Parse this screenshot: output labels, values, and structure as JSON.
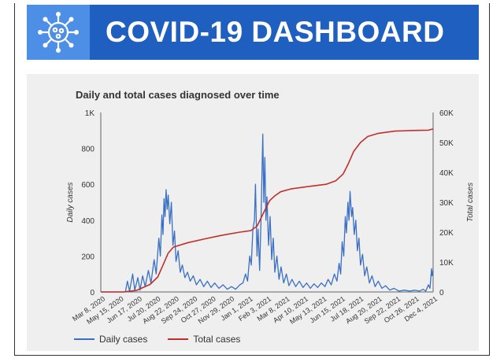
{
  "header": {
    "title": "COVID-19 DASHBOARD",
    "logo_icon": "virus-icon",
    "bg_color": "#1f5fc0",
    "logo_bg_color": "#4d8ee6"
  },
  "chart_data": {
    "type": "line",
    "title": "Daily and total cases diagnosed over time",
    "xlabel": "",
    "ylabel": "Daily cases",
    "y2label": "Total cases",
    "ylim": [
      0,
      1000
    ],
    "y2lim": [
      0,
      60000
    ],
    "yticks": [
      "0",
      "200",
      "400",
      "600",
      "800",
      "1K"
    ],
    "y2ticks": [
      "0",
      "10K",
      "20K",
      "30K",
      "40K",
      "50K",
      "60K"
    ],
    "xticks": [
      "Mar 8, 2020",
      "May 15, 2020",
      "Jun 17, 2020",
      "Jul 20, 2020",
      "Aug 22, 2020",
      "Sep 24, 2020",
      "Oct 27, 2020",
      "Nov 29, 2020",
      "Jan 1, 2021",
      "Feb 3, 2021",
      "Mar 8, 2021",
      "Apr 10, 2021",
      "May 13, 2021",
      "Jun 15, 2021",
      "Jul 18, 2021",
      "Aug 20, 2021",
      "Sep 22, 2021",
      "Oct 26, 2021",
      "Dec 4, 2021"
    ],
    "x_start": "Mar 8, 2020",
    "x_end": "Dec 4, 2021",
    "grid": false,
    "legend_position": "bottom",
    "series": [
      {
        "name": "Daily cases",
        "axis": "left",
        "color": "#3a6fc4",
        "points": [
          [
            "2020-03-08",
            0
          ],
          [
            "2020-04-01",
            0
          ],
          [
            "2020-04-24",
            0
          ],
          [
            "2020-04-28",
            60
          ],
          [
            "2020-05-02",
            5
          ],
          [
            "2020-05-08",
            100
          ],
          [
            "2020-05-12",
            10
          ],
          [
            "2020-05-18",
            80
          ],
          [
            "2020-05-22",
            10
          ],
          [
            "2020-05-27",
            90
          ],
          [
            "2020-06-01",
            30
          ],
          [
            "2020-06-07",
            120
          ],
          [
            "2020-06-12",
            50
          ],
          [
            "2020-06-18",
            180
          ],
          [
            "2020-06-22",
            100
          ],
          [
            "2020-06-27",
            300
          ],
          [
            "2020-06-30",
            200
          ],
          [
            "2020-07-03",
            430
          ],
          [
            "2020-07-05",
            320
          ],
          [
            "2020-07-07",
            520
          ],
          [
            "2020-07-09",
            420
          ],
          [
            "2020-07-11",
            570
          ],
          [
            "2020-07-13",
            460
          ],
          [
            "2020-07-15",
            540
          ],
          [
            "2020-07-18",
            380
          ],
          [
            "2020-07-21",
            500
          ],
          [
            "2020-07-24",
            260
          ],
          [
            "2020-07-27",
            340
          ],
          [
            "2020-07-30",
            170
          ],
          [
            "2020-08-03",
            230
          ],
          [
            "2020-08-07",
            110
          ],
          [
            "2020-08-11",
            150
          ],
          [
            "2020-08-16",
            80
          ],
          [
            "2020-08-21",
            110
          ],
          [
            "2020-08-26",
            60
          ],
          [
            "2020-09-01",
            90
          ],
          [
            "2020-09-07",
            40
          ],
          [
            "2020-09-14",
            70
          ],
          [
            "2020-09-21",
            30
          ],
          [
            "2020-09-28",
            60
          ],
          [
            "2020-10-05",
            25
          ],
          [
            "2020-10-12",
            50
          ],
          [
            "2020-10-20",
            20
          ],
          [
            "2020-10-28",
            40
          ],
          [
            "2020-11-05",
            15
          ],
          [
            "2020-11-13",
            30
          ],
          [
            "2020-11-21",
            15
          ],
          [
            "2020-11-29",
            40
          ],
          [
            "2020-12-05",
            50
          ],
          [
            "2020-12-10",
            100
          ],
          [
            "2020-12-14",
            60
          ],
          [
            "2020-12-18",
            200
          ],
          [
            "2020-12-21",
            150
          ],
          [
            "2020-12-24",
            350
          ],
          [
            "2020-12-27",
            400
          ],
          [
            "2020-12-29",
            600
          ],
          [
            "2021-01-01",
            200
          ],
          [
            "2021-01-03",
            350
          ],
          [
            "2021-01-06",
            120
          ],
          [
            "2021-01-09",
            450
          ],
          [
            "2021-01-12",
            880
          ],
          [
            "2021-01-14",
            500
          ],
          [
            "2021-01-16",
            750
          ],
          [
            "2021-01-18",
            400
          ],
          [
            "2021-01-20",
            530
          ],
          [
            "2021-01-23",
            260
          ],
          [
            "2021-01-26",
            420
          ],
          [
            "2021-01-29",
            180
          ],
          [
            "2021-02-01",
            300
          ],
          [
            "2021-02-04",
            110
          ],
          [
            "2021-02-08",
            200
          ],
          [
            "2021-02-12",
            70
          ],
          [
            "2021-02-16",
            140
          ],
          [
            "2021-02-21",
            50
          ],
          [
            "2021-02-26",
            100
          ],
          [
            "2021-03-03",
            35
          ],
          [
            "2021-03-09",
            70
          ],
          [
            "2021-03-16",
            30
          ],
          [
            "2021-03-23",
            60
          ],
          [
            "2021-03-30",
            25
          ],
          [
            "2021-04-06",
            50
          ],
          [
            "2021-04-13",
            20
          ],
          [
            "2021-04-20",
            45
          ],
          [
            "2021-04-27",
            25
          ],
          [
            "2021-05-04",
            50
          ],
          [
            "2021-05-11",
            30
          ],
          [
            "2021-05-17",
            70
          ],
          [
            "2021-05-23",
            40
          ],
          [
            "2021-05-29",
            100
          ],
          [
            "2021-06-03",
            60
          ],
          [
            "2021-06-07",
            160
          ],
          [
            "2021-06-10",
            100
          ],
          [
            "2021-06-13",
            280
          ],
          [
            "2021-06-16",
            200
          ],
          [
            "2021-06-19",
            420
          ],
          [
            "2021-06-21",
            330
          ],
          [
            "2021-06-24",
            500
          ],
          [
            "2021-06-26",
            400
          ],
          [
            "2021-06-28",
            560
          ],
          [
            "2021-07-01",
            420
          ],
          [
            "2021-07-03",
            470
          ],
          [
            "2021-07-06",
            320
          ],
          [
            "2021-07-09",
            400
          ],
          [
            "2021-07-12",
            230
          ],
          [
            "2021-07-15",
            300
          ],
          [
            "2021-07-18",
            150
          ],
          [
            "2021-07-22",
            210
          ],
          [
            "2021-07-26",
            90
          ],
          [
            "2021-07-30",
            140
          ],
          [
            "2021-08-04",
            50
          ],
          [
            "2021-08-09",
            90
          ],
          [
            "2021-08-15",
            30
          ],
          [
            "2021-08-21",
            60
          ],
          [
            "2021-08-28",
            20
          ],
          [
            "2021-09-04",
            35
          ],
          [
            "2021-09-12",
            10
          ],
          [
            "2021-09-20",
            20
          ],
          [
            "2021-09-30",
            5
          ],
          [
            "2021-10-10",
            10
          ],
          [
            "2021-10-20",
            5
          ],
          [
            "2021-10-30",
            10
          ],
          [
            "2021-11-08",
            5
          ],
          [
            "2021-11-15",
            15
          ],
          [
            "2021-11-20",
            5
          ],
          [
            "2021-11-25",
            40
          ],
          [
            "2021-11-28",
            20
          ],
          [
            "2021-12-01",
            130
          ],
          [
            "2021-12-02",
            90
          ],
          [
            "2021-12-04",
            120
          ]
        ]
      },
      {
        "name": "Total cases",
        "axis": "right",
        "color": "#c0302b",
        "points": [
          [
            "2020-03-08",
            0
          ],
          [
            "2020-04-20",
            0
          ],
          [
            "2020-05-15",
            500
          ],
          [
            "2020-06-10",
            2500
          ],
          [
            "2020-06-25",
            5000
          ],
          [
            "2020-07-05",
            9000
          ],
          [
            "2020-07-15",
            13000
          ],
          [
            "2020-07-25",
            15000
          ],
          [
            "2020-08-22",
            16500
          ],
          [
            "2020-09-24",
            17800
          ],
          [
            "2020-10-27",
            19000
          ],
          [
            "2020-11-29",
            20000
          ],
          [
            "2020-12-20",
            20500
          ],
          [
            "2021-01-01",
            22000
          ],
          [
            "2021-01-15",
            27000
          ],
          [
            "2021-01-25",
            30500
          ],
          [
            "2021-02-03",
            32000
          ],
          [
            "2021-02-15",
            33500
          ],
          [
            "2021-03-08",
            34500
          ],
          [
            "2021-04-10",
            35300
          ],
          [
            "2021-05-13",
            36000
          ],
          [
            "2021-06-01",
            37200
          ],
          [
            "2021-06-15",
            39500
          ],
          [
            "2021-06-25",
            43000
          ],
          [
            "2021-07-05",
            47000
          ],
          [
            "2021-07-18",
            50000
          ],
          [
            "2021-08-01",
            52000
          ],
          [
            "2021-08-20",
            53000
          ],
          [
            "2021-09-22",
            53800
          ],
          [
            "2021-10-26",
            54000
          ],
          [
            "2021-11-25",
            54100
          ],
          [
            "2021-12-04",
            54500
          ]
        ]
      }
    ]
  }
}
